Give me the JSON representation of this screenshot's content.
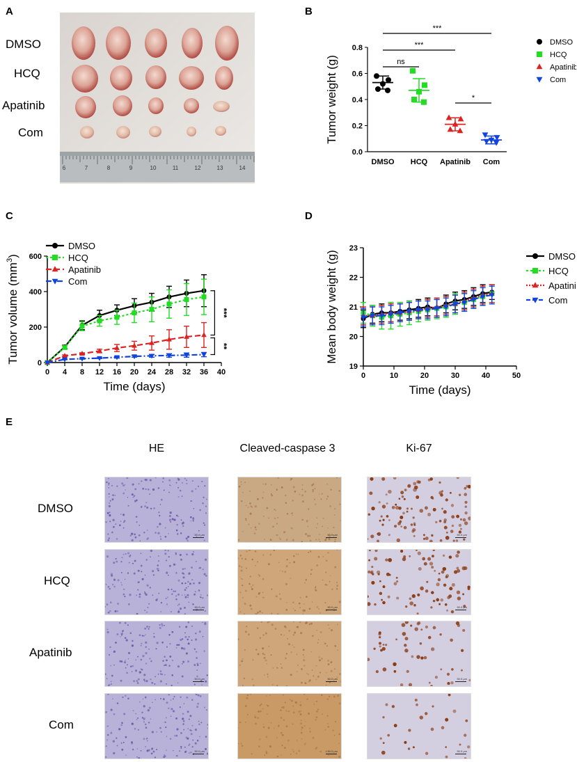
{
  "panel_labels": {
    "a": "A",
    "b": "B",
    "c": "C",
    "d": "D",
    "e": "E"
  },
  "colors": {
    "dmso": "#000000",
    "hcq": "#22dd22",
    "apatinib": "#dd2222",
    "com": "#1144dd",
    "he": "#b9b2d8",
    "cc3_dmso": "#c9a984",
    "cc3_com": "#c99a66",
    "ki67_bg": "#d3cfe0",
    "ki67_nuclei": "#8a3a12"
  },
  "photo": {
    "row_labels": [
      "DMSO",
      "HCQ",
      "Apatinib",
      "Com"
    ],
    "ruler_ticks": [
      "6",
      "7",
      "8",
      "9",
      "10",
      "11",
      "12",
      "13",
      "14"
    ]
  },
  "chart_data": [
    {
      "panel": "B",
      "type": "scatter",
      "ylabel": "Tumor weight (g)",
      "xlabel": "",
      "ylim": [
        0,
        0.8
      ],
      "yticks": [
        "0.0",
        "0.2",
        "0.4",
        "0.6",
        "0.8"
      ],
      "categories": [
        "DMSO",
        "HCQ",
        "Apatinib",
        "Com"
      ],
      "series": [
        {
          "name": "DMSO",
          "marker": "circle",
          "points": [
            0.58,
            0.55,
            0.52,
            0.48,
            0.47
          ],
          "mean": 0.53,
          "sd": 0.05
        },
        {
          "name": "HCQ",
          "marker": "square",
          "points": [
            0.62,
            0.51,
            0.46,
            0.4,
            0.38
          ],
          "mean": 0.47,
          "sd": 0.09
        },
        {
          "name": "Apatinib",
          "marker": "triangle-up",
          "points": [
            0.26,
            0.25,
            0.21,
            0.17,
            0.16
          ],
          "mean": 0.21,
          "sd": 0.05
        },
        {
          "name": "Com",
          "marker": "triangle-down",
          "points": [
            0.13,
            0.11,
            0.09,
            0.08,
            0.07
          ],
          "mean": 0.09,
          "sd": 0.03
        }
      ],
      "brackets": [
        {
          "from": "DMSO",
          "to": "HCQ",
          "label": "ns"
        },
        {
          "from": "DMSO",
          "to": "Apatinib",
          "label": "***"
        },
        {
          "from": "DMSO",
          "to": "Com",
          "label": "***"
        },
        {
          "from": "Apatinib",
          "to": "Com",
          "label": "*"
        }
      ],
      "legend": "right"
    },
    {
      "panel": "C",
      "type": "line",
      "ylabel": "Tumor volume (mm",
      "ylabel_sup": "3",
      "ylabel_close": ")",
      "xlabel": "Time (days)",
      "xlim": [
        0,
        40
      ],
      "ylim": [
        0,
        600
      ],
      "xticks": [
        "0",
        "4",
        "8",
        "12",
        "16",
        "20",
        "24",
        "28",
        "32",
        "36",
        "40"
      ],
      "yticks": [
        "0",
        "200",
        "400",
        "600"
      ],
      "x": [
        0,
        4,
        8,
        12,
        16,
        20,
        24,
        28,
        32,
        36
      ],
      "series": [
        {
          "name": "DMSO",
          "marker": "circle",
          "dash": "",
          "values": [
            0,
            88,
            210,
            265,
            295,
            320,
            340,
            370,
            390,
            405
          ],
          "err": [
            0,
            10,
            25,
            30,
            30,
            40,
            50,
            60,
            75,
            90
          ]
        },
        {
          "name": "HCQ",
          "marker": "square",
          "dash": "3,3",
          "values": [
            0,
            85,
            205,
            235,
            255,
            280,
            300,
            330,
            355,
            370
          ],
          "err": [
            0,
            10,
            25,
            30,
            40,
            55,
            70,
            80,
            90,
            100
          ]
        },
        {
          "name": "Apatinib",
          "marker": "triangle-up",
          "dash": "8,4",
          "values": [
            0,
            38,
            50,
            65,
            82,
            95,
            110,
            130,
            145,
            155
          ],
          "err": [
            0,
            5,
            5,
            10,
            20,
            25,
            40,
            55,
            60,
            70
          ]
        },
        {
          "name": "Com",
          "marker": "triangle-down",
          "dash": "8,3,2,3",
          "values": [
            0,
            18,
            22,
            25,
            30,
            35,
            38,
            40,
            42,
            45
          ],
          "err": [
            0,
            2,
            3,
            3,
            5,
            5,
            8,
            10,
            12,
            12
          ]
        }
      ],
      "annotations": [
        {
          "label": "***",
          "between": [
            "DMSO",
            "Apatinib"
          ]
        },
        {
          "label": "**",
          "between": [
            "Apatinib",
            "Com"
          ]
        }
      ],
      "legend": "top-left"
    },
    {
      "panel": "D",
      "type": "line",
      "ylabel": "Mean body weight (g)",
      "xlabel": "Time (days)",
      "xlim": [
        0,
        50
      ],
      "ylim": [
        19,
        23
      ],
      "xticks": [
        "0",
        "10",
        "20",
        "30",
        "40",
        "50"
      ],
      "yticks": [
        "19",
        "20",
        "21",
        "22",
        "23"
      ],
      "x": [
        0,
        3,
        6,
        9,
        12,
        15,
        18,
        21,
        24,
        27,
        30,
        33,
        36,
        39,
        42
      ],
      "series": [
        {
          "name": "DMSO",
          "marker": "circle",
          "dash": "",
          "values": [
            20.6,
            20.75,
            20.8,
            20.8,
            20.85,
            20.9,
            20.95,
            21.0,
            20.95,
            21.1,
            21.2,
            21.25,
            21.35,
            21.45,
            21.5
          ],
          "err": [
            0.3,
            0.3,
            0.3,
            0.35,
            0.3,
            0.3,
            0.3,
            0.3,
            0.3,
            0.3,
            0.3,
            0.3,
            0.3,
            0.3,
            0.25
          ]
        },
        {
          "name": "HCQ",
          "marker": "square",
          "dash": "3,3",
          "values": [
            20.8,
            20.7,
            20.65,
            20.7,
            20.75,
            20.8,
            20.85,
            20.9,
            20.95,
            21.0,
            21.1,
            21.15,
            21.25,
            21.35,
            21.45
          ],
          "err": [
            0.35,
            0.35,
            0.4,
            0.45,
            0.4,
            0.4,
            0.35,
            0.35,
            0.35,
            0.35,
            0.35,
            0.3,
            0.3,
            0.3,
            0.3
          ]
        },
        {
          "name": "Apatinib",
          "marker": "triangle-up",
          "dash": "2,2",
          "values": [
            20.7,
            20.7,
            20.75,
            20.8,
            20.8,
            20.85,
            20.9,
            20.95,
            21.0,
            21.05,
            21.1,
            21.2,
            21.3,
            21.4,
            21.45
          ],
          "err": [
            0.3,
            0.3,
            0.3,
            0.3,
            0.3,
            0.3,
            0.3,
            0.3,
            0.3,
            0.3,
            0.3,
            0.3,
            0.3,
            0.3,
            0.3
          ]
        },
        {
          "name": "Com",
          "marker": "triangle-down",
          "dash": "6,3",
          "values": [
            20.65,
            20.7,
            20.7,
            20.75,
            20.8,
            20.85,
            20.9,
            20.9,
            20.95,
            21.0,
            21.1,
            21.15,
            21.25,
            21.35,
            21.4
          ],
          "err": [
            0.3,
            0.3,
            0.3,
            0.3,
            0.3,
            0.3,
            0.3,
            0.3,
            0.3,
            0.3,
            0.3,
            0.3,
            0.3,
            0.3,
            0.3
          ]
        }
      ],
      "legend": "right"
    }
  ],
  "histology": {
    "column_headers": [
      "HE",
      "Cleaved-caspase 3",
      "Ki-67"
    ],
    "row_labels": [
      "DMSO",
      "HCQ",
      "Apatinib",
      "Com"
    ],
    "scale_label": "50.0 μm"
  }
}
